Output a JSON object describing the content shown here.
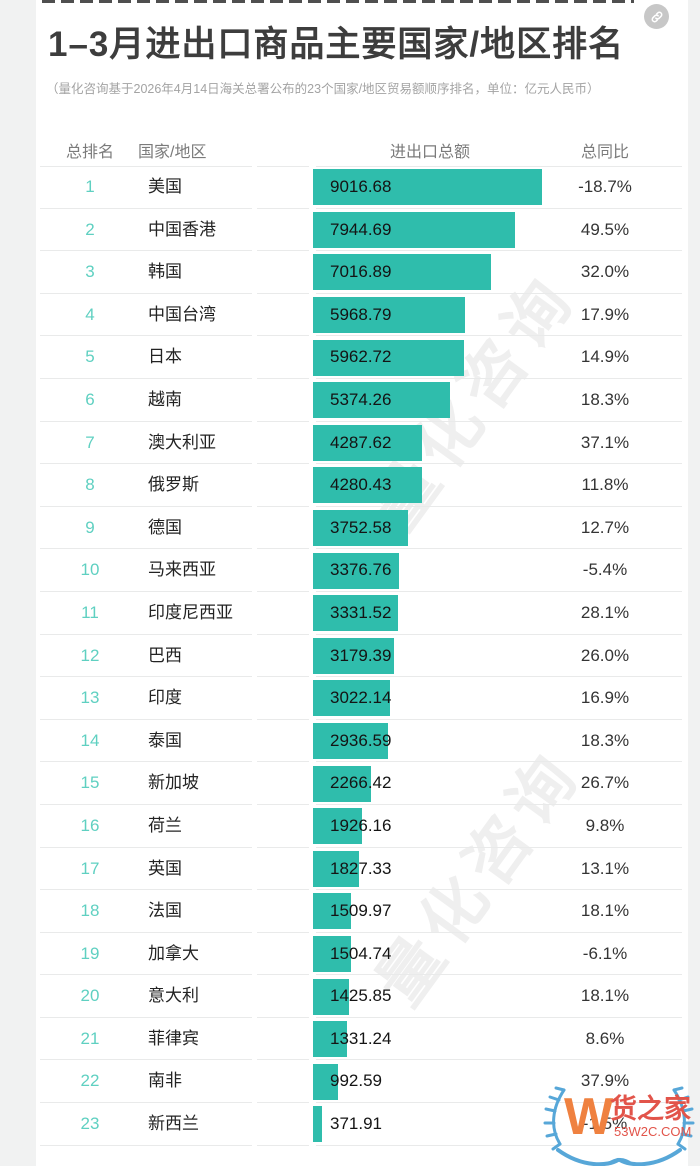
{
  "page": {
    "title": "1–3月进出口商品主要国家/地区排名",
    "subtitle": "（量化咨询基于2026年4月14日海关总署公布的23个国家/地区贸易额顺序排名，单位：亿元人民币）"
  },
  "table": {
    "headers": {
      "rank": "总排名",
      "country": "国家/地区",
      "amount": "进出口总额",
      "yoy": "总同比"
    },
    "rows": [
      {
        "rank": "1",
        "country": "美国",
        "amount": "9016.68",
        "value": 9016.68,
        "yoy": "-18.7%"
      },
      {
        "rank": "2",
        "country": "中国香港",
        "amount": "7944.69",
        "value": 7944.69,
        "yoy": "49.5%"
      },
      {
        "rank": "3",
        "country": "韩国",
        "amount": "7016.89",
        "value": 7016.89,
        "yoy": "32.0%"
      },
      {
        "rank": "4",
        "country": "中国台湾",
        "amount": "5968.79",
        "value": 5968.79,
        "yoy": "17.9%"
      },
      {
        "rank": "5",
        "country": "日本",
        "amount": "5962.72",
        "value": 5962.72,
        "yoy": "14.9%"
      },
      {
        "rank": "6",
        "country": "越南",
        "amount": "5374.26",
        "value": 5374.26,
        "yoy": "18.3%"
      },
      {
        "rank": "7",
        "country": "澳大利亚",
        "amount": "4287.62",
        "value": 4287.62,
        "yoy": "37.1%"
      },
      {
        "rank": "8",
        "country": "俄罗斯",
        "amount": "4280.43",
        "value": 4280.43,
        "yoy": "11.8%"
      },
      {
        "rank": "9",
        "country": "德国",
        "amount": "3752.58",
        "value": 3752.58,
        "yoy": "12.7%"
      },
      {
        "rank": "10",
        "country": "马来西亚",
        "amount": "3376.76",
        "value": 3376.76,
        "yoy": "-5.4%"
      },
      {
        "rank": "11",
        "country": "印度尼西亚",
        "amount": "3331.52",
        "value": 3331.52,
        "yoy": "28.1%"
      },
      {
        "rank": "12",
        "country": "巴西",
        "amount": "3179.39",
        "value": 3179.39,
        "yoy": "26.0%"
      },
      {
        "rank": "13",
        "country": "印度",
        "amount": "3022.14",
        "value": 3022.14,
        "yoy": "16.9%"
      },
      {
        "rank": "14",
        "country": "泰国",
        "amount": "2936.59",
        "value": 2936.59,
        "yoy": "18.3%"
      },
      {
        "rank": "15",
        "country": "新加坡",
        "amount": "2266.42",
        "value": 2266.42,
        "yoy": "26.7%"
      },
      {
        "rank": "16",
        "country": "荷兰",
        "amount": "1926.16",
        "value": 1926.16,
        "yoy": "9.8%"
      },
      {
        "rank": "17",
        "country": "英国",
        "amount": "1827.33",
        "value": 1827.33,
        "yoy": "13.1%"
      },
      {
        "rank": "18",
        "country": "法国",
        "amount": "1509.97",
        "value": 1509.97,
        "yoy": "18.1%"
      },
      {
        "rank": "19",
        "country": "加拿大",
        "amount": "1504.74",
        "value": 1504.74,
        "yoy": "-6.1%"
      },
      {
        "rank": "20",
        "country": "意大利",
        "amount": "1425.85",
        "value": 1425.85,
        "yoy": "18.1%"
      },
      {
        "rank": "21",
        "country": "菲律宾",
        "amount": "1331.24",
        "value": 1331.24,
        "yoy": "8.6%"
      },
      {
        "rank": "22",
        "country": "南非",
        "amount": "992.59",
        "value": 992.59,
        "yoy": "37.9%"
      },
      {
        "rank": "23",
        "country": "新西兰",
        "amount": "371.91",
        "value": 371.91,
        "yoy": "-1.5%"
      }
    ]
  },
  "watermark": {
    "text": "量化咨询"
  },
  "brand": {
    "letter": "W",
    "name": "货之家",
    "domain": "53W2C.COM"
  },
  "colors": {
    "bar": "#2fbdac",
    "rank": "#5fd0c1",
    "title": "#3d3d3d",
    "subtitle": "#a3a3a3",
    "header": "#7b7b7b",
    "divider": "#e9eaea",
    "page_bg": "#f1f2f2",
    "logo_blue": "#57a7d8",
    "logo_orange": "#ef8140",
    "logo_red": "#e2544a"
  },
  "chart_data": {
    "type": "bar",
    "orientation": "horizontal",
    "title": "1–3月进出口商品主要国家/地区排名",
    "subtitle": "（量化咨询基于2026年4月14日海关总署公布的23个国家/地区贸易额顺序排名，单位：亿元人民币）",
    "unit": "亿元人民币",
    "categories": [
      "美国",
      "中国香港",
      "韩国",
      "中国台湾",
      "日本",
      "越南",
      "澳大利亚",
      "俄罗斯",
      "德国",
      "马来西亚",
      "印度尼西亚",
      "巴西",
      "印度",
      "泰国",
      "新加坡",
      "荷兰",
      "英国",
      "法国",
      "加拿大",
      "意大利",
      "菲律宾",
      "南非",
      "新西兰"
    ],
    "series": [
      {
        "name": "进出口总额",
        "values": [
          9016.68,
          7944.69,
          7016.89,
          5968.79,
          5962.72,
          5374.26,
          4287.62,
          4280.43,
          3752.58,
          3376.76,
          3331.52,
          3179.39,
          3022.14,
          2936.59,
          2266.42,
          1926.16,
          1827.33,
          1509.97,
          1504.74,
          1425.85,
          1331.24,
          992.59,
          371.91
        ]
      },
      {
        "name": "总同比(%)",
        "values": [
          -18.7,
          49.5,
          32.0,
          17.9,
          14.9,
          18.3,
          37.1,
          11.8,
          12.7,
          -5.4,
          28.1,
          26.0,
          16.9,
          18.3,
          26.7,
          9.8,
          13.1,
          18.1,
          -6.1,
          18.1,
          8.6,
          37.9,
          -1.5
        ]
      }
    ],
    "ranks": [
      1,
      2,
      3,
      4,
      5,
      6,
      7,
      8,
      9,
      10,
      11,
      12,
      13,
      14,
      15,
      16,
      17,
      18,
      19,
      20,
      21,
      22,
      23
    ],
    "xlim": [
      0,
      9016.68
    ],
    "grid": false,
    "value_labels": "inside-bar-left",
    "legend": "none"
  }
}
